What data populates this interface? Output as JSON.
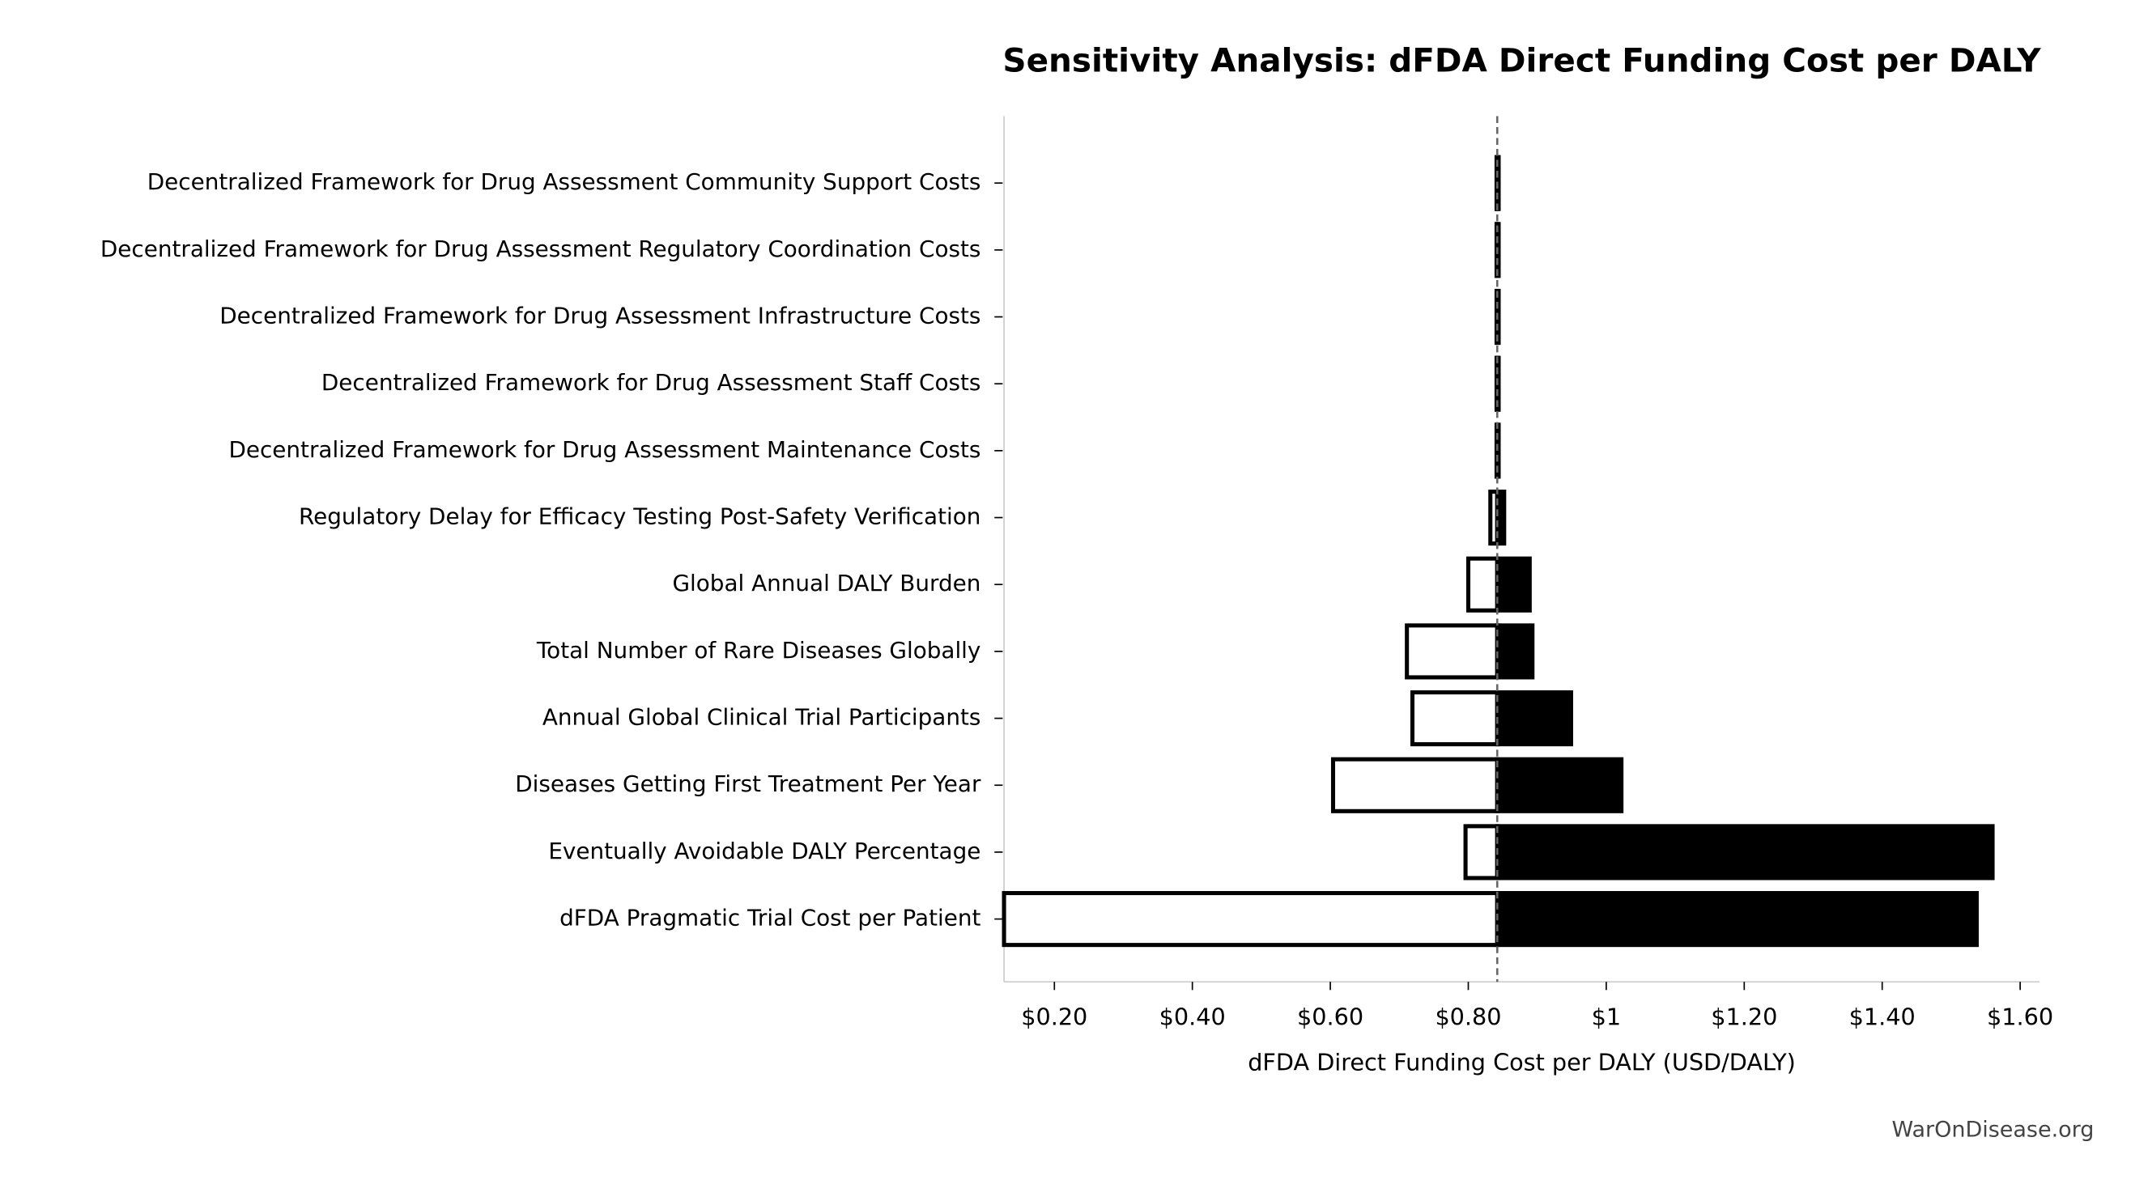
{
  "chart_data": {
    "type": "tornado",
    "title": "Sensitivity Analysis: dFDA Direct Funding Cost per DALY",
    "x_label": "dFDA Direct Funding Cost per DALY (USD/DALY)",
    "watermark": "WarOnDisease.org",
    "categories": [
      "Decentralized Framework for Drug Assessment Community Support Costs",
      "Decentralized Framework for Drug Assessment Regulatory Coordination Costs",
      "Decentralized Framework for Drug Assessment Infrastructure Costs",
      "Decentralized Framework for Drug Assessment Staff Costs",
      "Decentralized Framework for Drug Assessment Maintenance Costs",
      "Regulatory Delay for Efficacy Testing Post-Safety Verification",
      "Global Annual DALY Burden",
      "Total Number of Rare Diseases Globally",
      "Annual Global Clinical Trial Participants",
      "Diseases Getting First Treatment Per Year",
      "Eventually Avoidable DALY Percentage",
      "dFDA Pragmatic Trial Cost per Patient"
    ],
    "baseline": 0.842,
    "series": [
      {
        "color": "#ffffff",
        "values": [
          0.841,
          0.841,
          0.841,
          0.841,
          0.841,
          0.832,
          0.8,
          0.711,
          0.719,
          0.604,
          0.796,
          0.127
        ]
      },
      {
        "color": "#000000",
        "values": [
          0.844,
          0.844,
          0.844,
          0.844,
          0.844,
          0.852,
          0.889,
          0.893,
          0.949,
          1.022,
          1.56,
          1.537
        ]
      }
    ],
    "xlim": [
      0.127,
      1.628
    ],
    "xticks": [
      {
        "value": 0.2,
        "label": "$0.20"
      },
      {
        "value": 0.4,
        "label": "$0.40"
      },
      {
        "value": 0.6,
        "label": "$0.60"
      },
      {
        "value": 0.8,
        "label": "$0.80"
      },
      {
        "value": 1,
        "label": "$1"
      },
      {
        "value": 1.2,
        "label": "$1.20"
      },
      {
        "value": 1.4,
        "label": "$1.40"
      },
      {
        "value": 1.6,
        "label": "$1.60"
      }
    ]
  }
}
